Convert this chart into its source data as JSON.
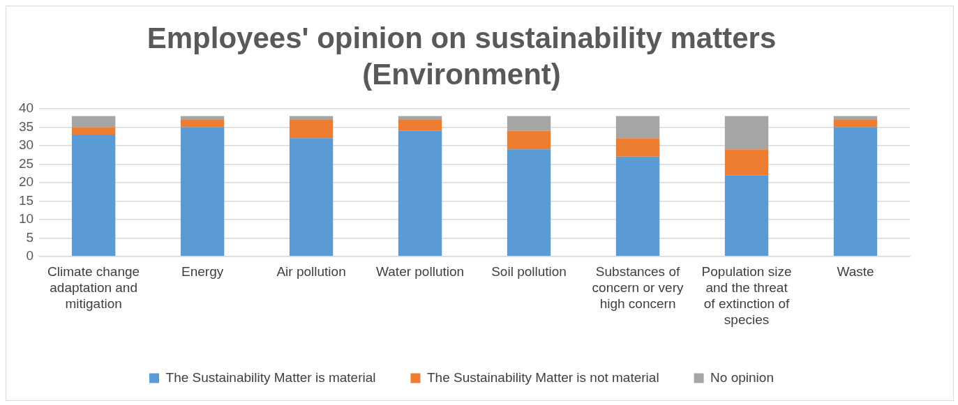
{
  "chart_data": {
    "type": "bar",
    "title": "Employees' opinion on sustainability matters (Environment)",
    "categories": [
      "Climate change adaptation and mitigation",
      "Energy",
      "Air pollution",
      "Water pollution",
      "Soil pollution",
      "Substances of concern or very high concern",
      "Population size and the threat of extinction of species",
      "Waste"
    ],
    "series": [
      {
        "name": "The Sustainability Matter is material",
        "color": "#5b9bd5",
        "values": [
          33,
          35,
          32,
          34,
          29,
          27,
          22,
          35
        ]
      },
      {
        "name": "The Sustainability Matter is not material",
        "color": "#ed7d31",
        "values": [
          2,
          2,
          5,
          3,
          5,
          5,
          7,
          2
        ]
      },
      {
        "name": "No opinion",
        "color": "#a5a5a5",
        "values": [
          3,
          1,
          1,
          1,
          4,
          6,
          9,
          1
        ]
      }
    ],
    "stacked": true,
    "ylim": [
      0,
      40
    ],
    "yticks": [
      0,
      5,
      10,
      15,
      20,
      25,
      30,
      35,
      40
    ],
    "grid": "y",
    "legend": "bottom"
  }
}
